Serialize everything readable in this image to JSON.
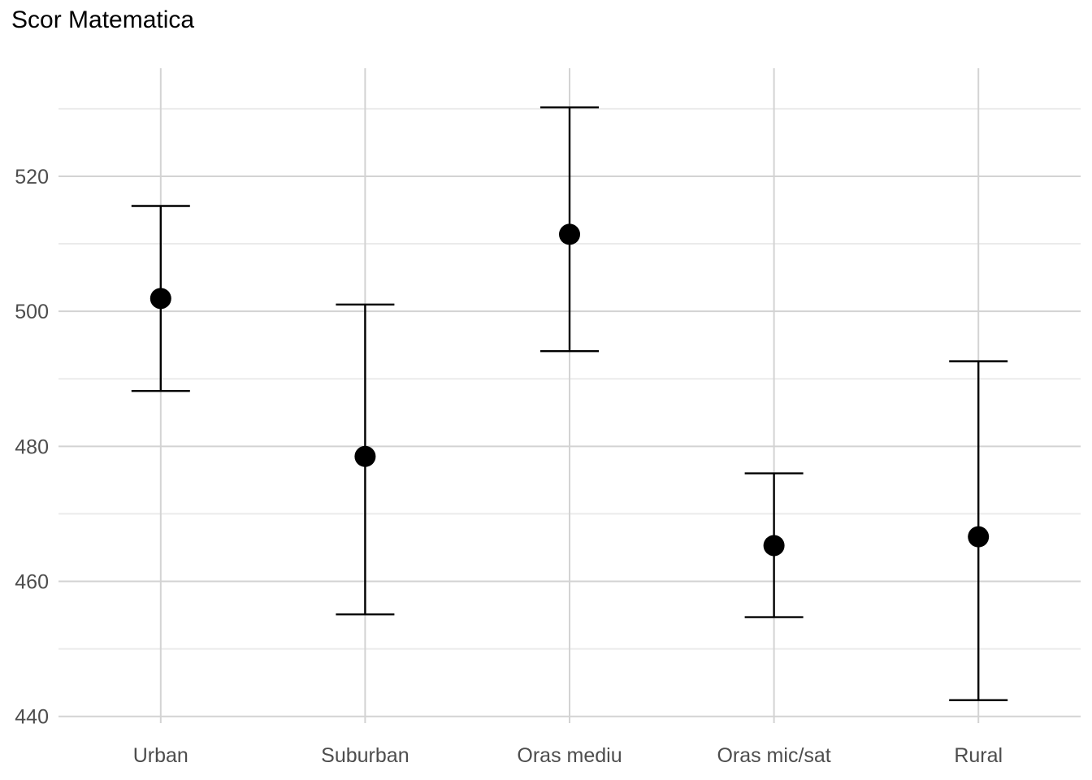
{
  "chart_data": {
    "type": "errorbar",
    "title": "Scor Matematica",
    "xlabel": "",
    "ylabel": "",
    "categories": [
      "Urban",
      "Suburban",
      "Oras mediu",
      "Oras mic/sat",
      "Rural"
    ],
    "values": [
      501.9,
      478.5,
      511.4,
      465.3,
      466.6
    ],
    "lower": [
      488.2,
      455.1,
      494.1,
      454.7,
      442.4
    ],
    "upper": [
      515.6,
      501.0,
      530.2,
      476.0,
      492.6
    ],
    "ylim": [
      439,
      536
    ],
    "yticks": [
      440,
      460,
      480,
      500,
      520
    ],
    "ytick_labels": [
      "440",
      "460",
      "480",
      "500",
      "520"
    ],
    "grid": true,
    "colors": {
      "point": "#000000",
      "errorbar": "#000000",
      "grid_major": "#d3d3d3",
      "grid_minor": "#ebebeb",
      "tick_text": "#4d4d4d"
    }
  }
}
